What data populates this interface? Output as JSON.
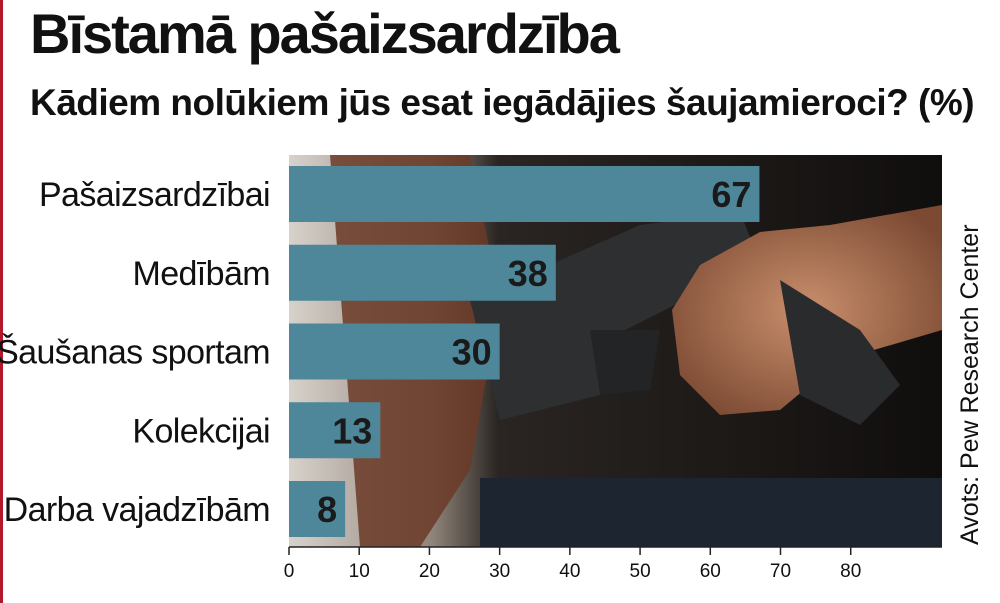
{
  "title": "Bīstamā pašaizsardzība",
  "subtitle": "Kādiem nolūkiem jūs esat iegādājies šaujamieroci? (%)",
  "source": "Avots: Pew Research Center",
  "colors": {
    "bar": "#4e8799",
    "accent_rule": "#b2182b"
  },
  "chart_data": {
    "type": "bar",
    "orientation": "horizontal",
    "categories": [
      "Pašaizsardzībai",
      "Medībām",
      "Šaušanas sportam",
      "Kolekcijai",
      "Darba vajadzībām"
    ],
    "values": [
      67,
      38,
      30,
      13,
      8
    ],
    "data_labels": [
      "67",
      "38",
      "30",
      "13",
      "8"
    ],
    "xlim": [
      0,
      93
    ],
    "xticks": [
      0,
      10,
      20,
      30,
      40,
      50,
      60,
      70,
      80
    ],
    "grid": false
  }
}
